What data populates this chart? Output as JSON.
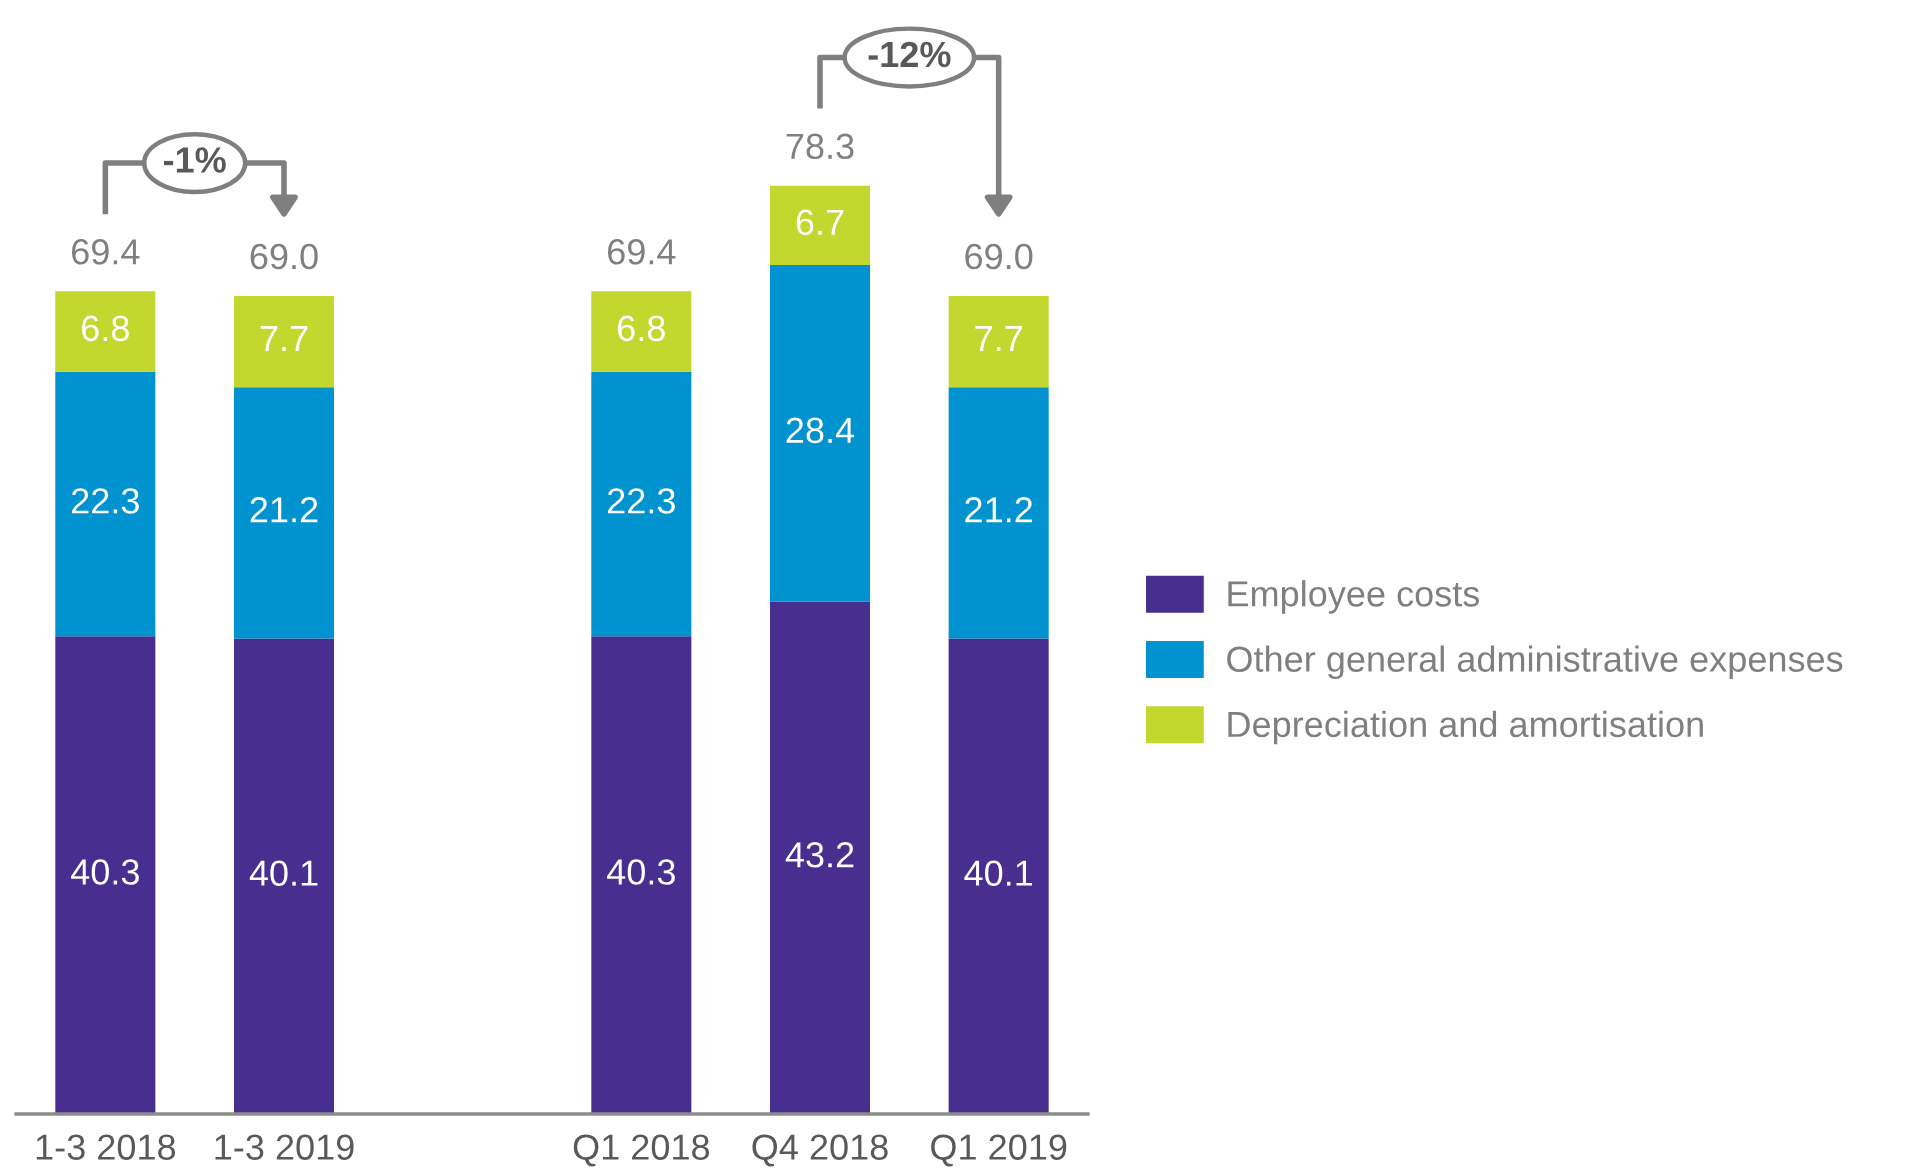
{
  "chart_data": {
    "type": "bar",
    "stacked": true,
    "categories": [
      "1-3 2018",
      "1-3 2019",
      null,
      "Q1 2018",
      "Q4 2018",
      "Q1 2019"
    ],
    "series": [
      {
        "name": "Employee costs",
        "color": "#472e8f",
        "values": [
          40.3,
          40.1,
          null,
          40.3,
          43.2,
          40.1
        ]
      },
      {
        "name": "Other general administrative expenses",
        "color": "#0093d0",
        "values": [
          22.3,
          21.2,
          null,
          22.3,
          28.4,
          21.2
        ]
      },
      {
        "name": "Depreciation and amortisation",
        "color": "#c3d72f",
        "values": [
          6.8,
          7.7,
          null,
          6.8,
          6.7,
          7.7
        ]
      }
    ],
    "data_labels": true,
    "totals": [
      "69.4",
      "69.0",
      null,
      "69.4",
      "78.3",
      "69.0"
    ],
    "annotations": [
      "-1%",
      "-12%"
    ],
    "legend": "right"
  }
}
